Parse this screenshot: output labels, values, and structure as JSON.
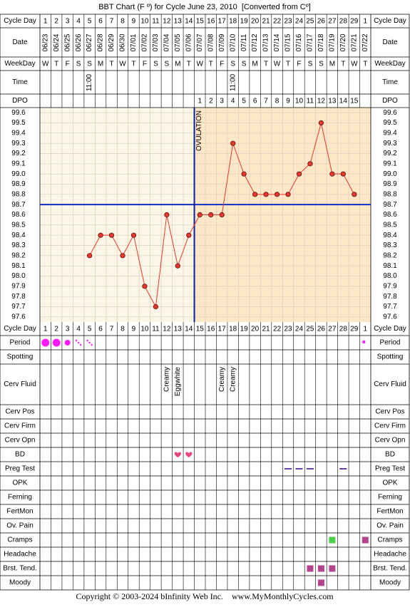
{
  "chart_data": {
    "type": "line",
    "title": "BBT Chart (F º) for Cycle June 23, 2010  [Converted from Cº]",
    "top_rows": [
      "Cycle Day",
      "Date",
      "WeekDay",
      "Time",
      "DPO"
    ],
    "bottom_rows": [
      "Cycle Day",
      "Period",
      "Spotting",
      "Cerv Fluid",
      "Cerv Pos",
      "Cerv Firm",
      "Cerv Opn",
      "BD",
      "Preg Test",
      "OPK",
      "Ferning",
      "FertMon",
      "Ov. Pain",
      "Cramps",
      "Headache",
      "Brst. Tend.",
      "Moody"
    ],
    "cycle_days": [
      1,
      2,
      3,
      4,
      5,
      6,
      7,
      8,
      9,
      10,
      11,
      12,
      13,
      14,
      15,
      16,
      17,
      18,
      19,
      20,
      21,
      22,
      23,
      24,
      25,
      26,
      27,
      28,
      29,
      1
    ],
    "categories": [
      "06/23",
      "06/24",
      "06/25",
      "06/26",
      "06/27",
      "06/28",
      "06/29",
      "06/30",
      "07/01",
      "07/02",
      "07/03",
      "07/04",
      "07/05",
      "07/06",
      "07/07",
      "07/08",
      "07/09",
      "07/10",
      "07/11",
      "07/12",
      "07/13",
      "07/14",
      "07/15",
      "07/16",
      "07/17",
      "07/18",
      "07/19",
      "07/20",
      "07/21",
      "07/22"
    ],
    "weekdays": [
      "W",
      "T",
      "F",
      "S",
      "S",
      "M",
      "T",
      "W",
      "T",
      "F",
      "S",
      "S",
      "M",
      "T",
      "W",
      "T",
      "F",
      "S",
      "S",
      "M",
      "T",
      "W",
      "T",
      "F",
      "S",
      "S",
      "M",
      "T",
      "W",
      "T"
    ],
    "times": [
      null,
      null,
      null,
      null,
      "11:00",
      null,
      null,
      null,
      null,
      null,
      null,
      null,
      null,
      null,
      null,
      null,
      null,
      "11:00",
      null,
      null,
      null,
      null,
      null,
      null,
      null,
      null,
      null,
      null,
      null,
      null
    ],
    "dpo": [
      null,
      null,
      null,
      null,
      null,
      null,
      null,
      null,
      null,
      null,
      null,
      null,
      null,
      null,
      1,
      2,
      3,
      4,
      5,
      6,
      7,
      8,
      9,
      10,
      11,
      12,
      13,
      14,
      15,
      null
    ],
    "values": [
      null,
      null,
      null,
      null,
      98.2,
      98.4,
      98.4,
      98.2,
      98.4,
      97.9,
      97.7,
      98.6,
      98.1,
      98.4,
      98.6,
      98.6,
      98.6,
      99.3,
      99.0,
      98.8,
      98.8,
      98.8,
      98.8,
      99.0,
      99.1,
      99.5,
      99.0,
      99.0,
      98.8,
      null
    ],
    "color": "#e8372c",
    "ylim": [
      97.55,
      99.65
    ],
    "yticks": [
      99.6,
      99.5,
      99.4,
      99.3,
      99.2,
      99.1,
      {
        "value": 99,
        "label": "99.0"
      },
      98.9,
      98.8,
      98.7,
      98.6,
      98.5,
      98.4,
      98.3,
      98.2,
      98.1,
      {
        "value": 98,
        "label": "98.0"
      },
      97.9,
      97.8,
      97.7,
      97.6
    ],
    "grid": true,
    "coverline": 98.7,
    "ovulation_label": "OVULATION",
    "cervical_fluid": [
      null,
      null,
      null,
      null,
      null,
      null,
      null,
      null,
      null,
      null,
      null,
      "Creamy",
      "Eggwhite",
      null,
      null,
      null,
      "Creamy",
      "Creamy",
      null,
      null,
      null,
      null,
      null,
      null,
      null,
      null,
      null,
      null,
      null,
      null
    ],
    "footer": "Copyright © 2003-2024 bInfinity Web Inc.    www.MyMonthlyCycles.com"
  }
}
